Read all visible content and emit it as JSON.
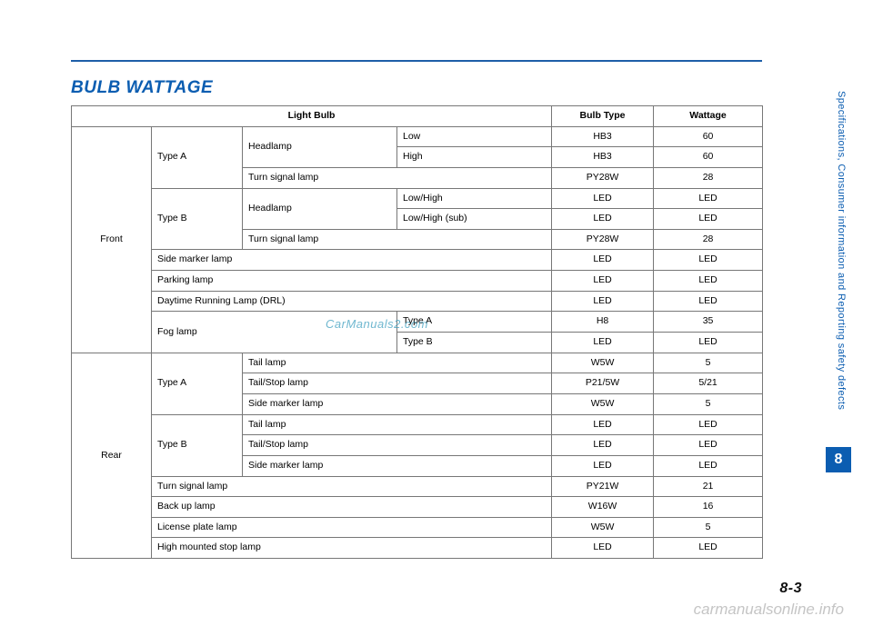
{
  "title": "BULB WATTAGE",
  "pageNumber": "8-3",
  "chapterNum": "8",
  "sideText": "Specifications, Consumer information and Reporting safety defects",
  "watermark": {
    "main": "CarManuals2.com",
    "footer": "carmanualsonline.info"
  },
  "colors": {
    "accent": "#0b5db1",
    "border": "#777"
  },
  "headers": {
    "lightBulb": "Light Bulb",
    "bulbType": "Bulb Type",
    "wattage": "Wattage"
  },
  "groups": {
    "front": "Front",
    "rear": "Rear",
    "typeA": "Type A",
    "typeB": "Type B",
    "headlamp": "Headlamp",
    "turnSignal": "Turn signal lamp",
    "fog": "Fog lamp"
  },
  "rows": {
    "f_ta_hl_low": {
      "sub": "Low",
      "type": "HB3",
      "watt": "60"
    },
    "f_ta_hl_high": {
      "sub": "High",
      "type": "HB3",
      "watt": "60"
    },
    "f_ta_turn": {
      "name": "Turn signal lamp",
      "type": "PY28W",
      "watt": "28"
    },
    "f_tb_hl_lh": {
      "sub": "Low/High",
      "type": "LED",
      "watt": "LED"
    },
    "f_tb_hl_lhs": {
      "sub": "Low/High (sub)",
      "type": "LED",
      "watt": "LED"
    },
    "f_tb_turn": {
      "name": "Turn signal lamp",
      "type": "PY28W",
      "watt": "28"
    },
    "f_side": {
      "name": "Side marker lamp",
      "type": "LED",
      "watt": "LED"
    },
    "f_park": {
      "name": "Parking lamp",
      "type": "LED",
      "watt": "LED"
    },
    "f_drl": {
      "name": "Daytime Running Lamp (DRL)",
      "type": "LED",
      "watt": "LED"
    },
    "f_fog_a": {
      "sub": "Type A",
      "type": "H8",
      "watt": "35"
    },
    "f_fog_b": {
      "sub": "Type B",
      "type": "LED",
      "watt": "LED"
    },
    "r_ta_tail": {
      "name": "Tail lamp",
      "type": "W5W",
      "watt": "5"
    },
    "r_ta_ts": {
      "name": "Tail/Stop lamp",
      "type": "P21/5W",
      "watt": "5/21"
    },
    "r_ta_side": {
      "name": "Side marker lamp",
      "type": "W5W",
      "watt": "5"
    },
    "r_tb_tail": {
      "name": "Tail lamp",
      "type": "LED",
      "watt": "LED"
    },
    "r_tb_ts": {
      "name": "Tail/Stop lamp",
      "type": "LED",
      "watt": "LED"
    },
    "r_tb_side": {
      "name": "Side marker lamp",
      "type": "LED",
      "watt": "LED"
    },
    "r_turn": {
      "name": "Turn signal lamp",
      "type": "PY21W",
      "watt": "21"
    },
    "r_back": {
      "name": "Back up lamp",
      "type": "W16W",
      "watt": "16"
    },
    "r_lic": {
      "name": "License plate lamp",
      "type": "W5W",
      "watt": "5"
    },
    "r_hmsl": {
      "name": "High mounted stop lamp",
      "type": "LED",
      "watt": "LED"
    }
  }
}
